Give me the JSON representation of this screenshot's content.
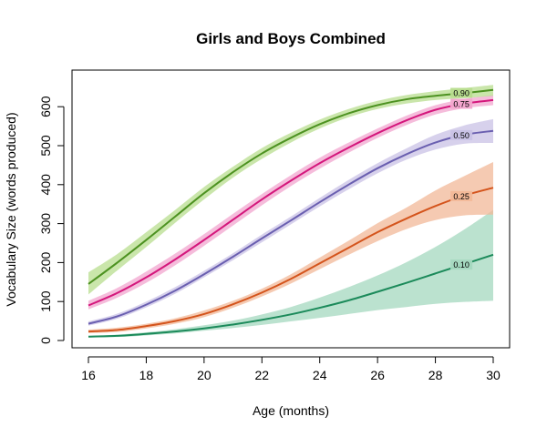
{
  "chart_data": {
    "type": "line",
    "title": "Girls and Boys Combined",
    "xlabel": "Age (months)",
    "ylabel": "Vocabulary Size (words produced)",
    "xlim": [
      16,
      30
    ],
    "ylim": [
      0,
      660
    ],
    "x_ticks": [
      "16",
      "18",
      "20",
      "22",
      "24",
      "26",
      "28",
      "30"
    ],
    "y_ticks": [
      "0",
      "100",
      "200",
      "300",
      "400",
      "500",
      "600"
    ],
    "grid": false,
    "x": [
      16,
      17,
      18,
      19,
      20,
      21,
      22,
      23,
      24,
      25,
      26,
      27,
      28,
      29,
      30
    ],
    "series": [
      {
        "name": "0.90",
        "color": "#4d9221",
        "band_color": "#b8dd8f",
        "values": [
          145,
          200,
          258,
          318,
          378,
          432,
          480,
          520,
          555,
          583,
          604,
          619,
          628,
          635,
          643
        ],
        "lower": [
          118,
          180,
          240,
          302,
          362,
          418,
          466,
          508,
          544,
          573,
          594,
          608,
          617,
          622,
          628
        ],
        "upper": [
          175,
          222,
          278,
          335,
          394,
          446,
          494,
          533,
          567,
          594,
          615,
          630,
          640,
          648,
          656
        ]
      },
      {
        "name": "0.75",
        "color": "#d4177c",
        "band_color": "#f2a6cf",
        "values": [
          90,
          122,
          162,
          208,
          258,
          310,
          362,
          410,
          455,
          495,
          532,
          565,
          592,
          608,
          617
        ],
        "lower": [
          80,
          110,
          148,
          193,
          243,
          295,
          347,
          396,
          441,
          482,
          520,
          553,
          580,
          596,
          604
        ],
        "upper": [
          102,
          135,
          177,
          223,
          273,
          325,
          376,
          424,
          469,
          508,
          544,
          577,
          604,
          620,
          630
        ]
      },
      {
        "name": "0.50",
        "color": "#6a5fb0",
        "band_color": "#c9c2e6",
        "values": [
          43,
          62,
          92,
          128,
          170,
          215,
          262,
          308,
          355,
          400,
          442,
          478,
          508,
          528,
          538
        ],
        "lower": [
          38,
          56,
          85,
          120,
          162,
          206,
          252,
          298,
          344,
          388,
          429,
          464,
          490,
          505,
          507
        ],
        "upper": [
          49,
          69,
          100,
          137,
          179,
          224,
          272,
          318,
          366,
          412,
          455,
          493,
          528,
          552,
          568
        ]
      },
      {
        "name": "0.25",
        "color": "#d4541c",
        "band_color": "#f2b898",
        "values": [
          23,
          27,
          37,
          50,
          68,
          93,
          123,
          158,
          198,
          238,
          278,
          313,
          345,
          372,
          392
        ],
        "lower": [
          19,
          22,
          31,
          43,
          60,
          84,
          113,
          146,
          183,
          220,
          255,
          286,
          309,
          321,
          323
        ],
        "upper": [
          28,
          33,
          43,
          57,
          77,
          102,
          133,
          170,
          213,
          256,
          301,
          341,
          385,
          422,
          458
        ]
      },
      {
        "name": "0.10",
        "color": "#1b8a5a",
        "band_color": "#a4d8bf",
        "values": [
          10,
          12,
          17,
          23,
          31,
          41,
          53,
          67,
          84,
          103,
          125,
          148,
          172,
          196,
          220
        ],
        "lower": [
          8,
          9,
          13,
          18,
          25,
          32,
          40,
          49,
          58,
          68,
          78,
          86,
          94,
          99,
          102
        ],
        "upper": [
          12,
          15,
          21,
          29,
          39,
          51,
          67,
          86,
          110,
          137,
          167,
          201,
          240,
          285,
          335
        ]
      }
    ]
  }
}
